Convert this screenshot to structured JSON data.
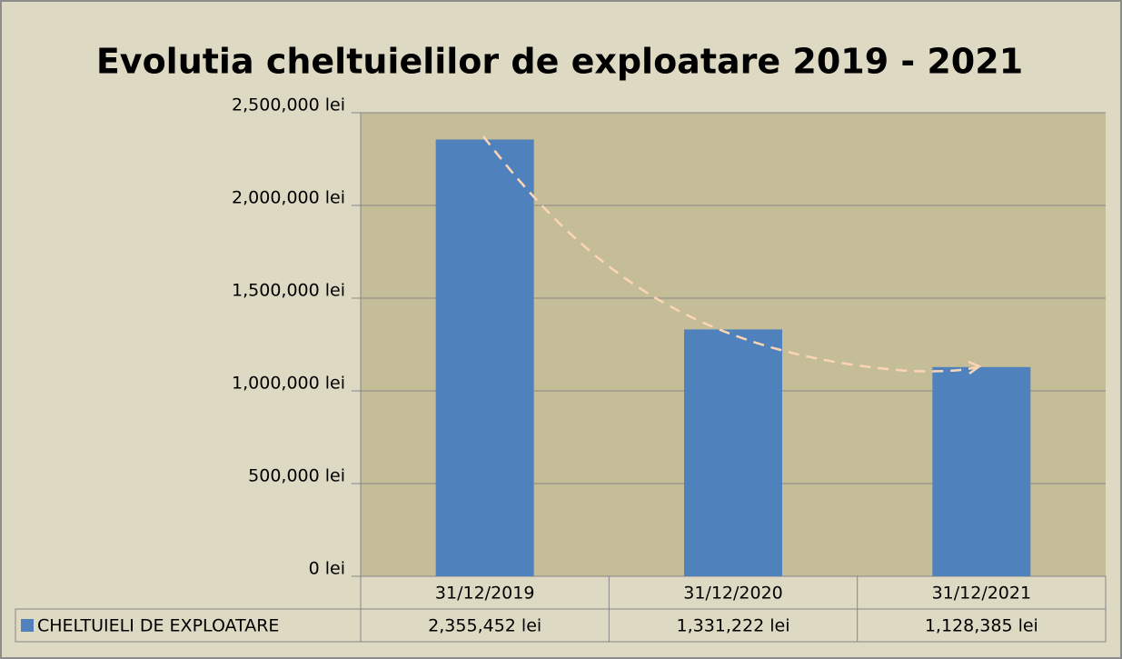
{
  "chart_data": {
    "type": "bar",
    "title": "Evolutia cheltuielilor de exploatare 2019 - 2021",
    "categories": [
      "31/12/2019",
      "31/12/2020",
      "31/12/2021"
    ],
    "series": [
      {
        "name": "CHELTUIELI DE EXPLOATARE",
        "color": "#4f81bd",
        "values": [
          2355452,
          1331222,
          1128385
        ],
        "value_labels": [
          "2,355,452 lei",
          "1,331,222 lei",
          "1,128,385 lei"
        ]
      }
    ],
    "ylim": [
      0,
      2500000
    ],
    "yticks": [
      {
        "value": 0,
        "label": "0 lei"
      },
      {
        "value": 500000,
        "label": "500,000 lei"
      },
      {
        "value": 1000000,
        "label": "1,000,000 lei"
      },
      {
        "value": 1500000,
        "label": "1,500,000 lei"
      },
      {
        "value": 2000000,
        "label": "2,000,000 lei"
      },
      {
        "value": 2500000,
        "label": "2,500,000 lei"
      }
    ],
    "grid": true
  }
}
